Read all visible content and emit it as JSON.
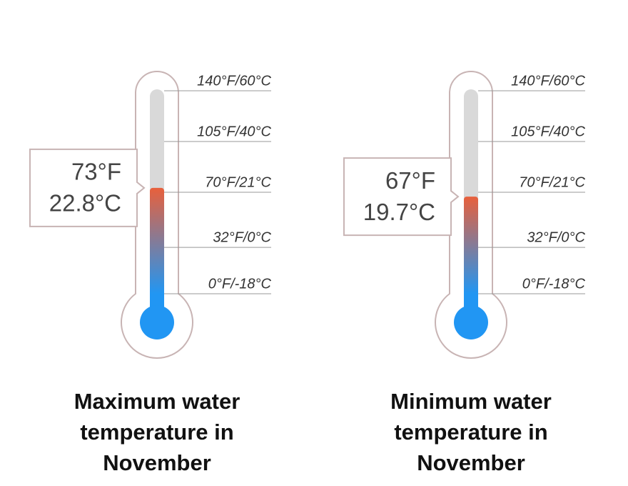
{
  "chart_data": [
    {
      "type": "thermometer",
      "title": "Maximum water temperature in November",
      "values": [
        73
      ],
      "value_labels": [
        "73°F"
      ],
      "secondary_value_labels": [
        "22.8°C"
      ],
      "ylim": [
        0,
        140
      ],
      "yticks": [
        {
          "value": 140,
          "label": "140°F/60°C"
        },
        {
          "value": 105,
          "label": "105°F/40°C"
        },
        {
          "value": 70,
          "label": "70°F/21°C"
        },
        {
          "value": 32,
          "label": "32°F/0°C"
        },
        {
          "value": 0,
          "label": "0°F/-18°C"
        }
      ],
      "colors": {
        "cold": "#2196f3",
        "warm": "#e8603c"
      }
    },
    {
      "type": "thermometer",
      "title": "Minimum water temperature in November",
      "values": [
        67
      ],
      "value_labels": [
        "67°F"
      ],
      "secondary_value_labels": [
        "19.7°C"
      ],
      "ylim": [
        0,
        140
      ],
      "yticks": [
        {
          "value": 140,
          "label": "140°F/60°C"
        },
        {
          "value": 105,
          "label": "105°F/40°C"
        },
        {
          "value": 70,
          "label": "70°F/21°C"
        },
        {
          "value": 32,
          "label": "32°F/0°C"
        },
        {
          "value": 0,
          "label": "0°F/-18°C"
        }
      ],
      "colors": {
        "cold": "#2196f3",
        "warm": "#e8603c"
      }
    }
  ]
}
